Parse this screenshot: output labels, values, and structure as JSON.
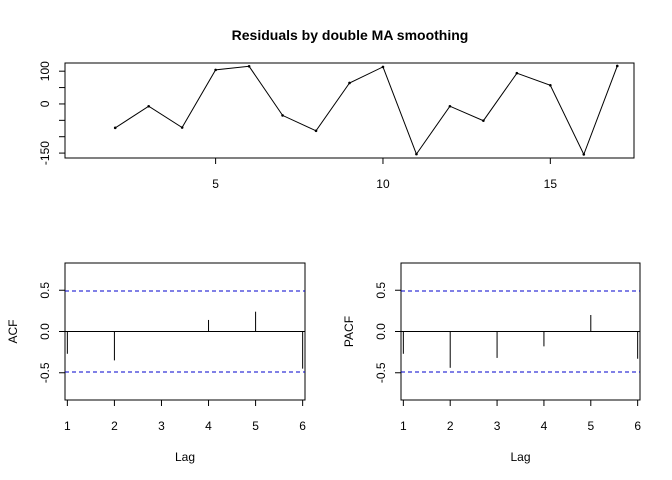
{
  "chart_data": [
    {
      "type": "line",
      "title": "Residuals by double MA smoothing",
      "xlabel": "",
      "ylabel": "",
      "xlim": [
        0.5,
        17.5
      ],
      "ylim": [
        -165,
        125
      ],
      "x_ticks": [
        5,
        10,
        15
      ],
      "y_ticks": [
        -150,
        0,
        100
      ],
      "y_minor_ticks": [
        -100,
        -50,
        50
      ],
      "x": [
        2,
        3,
        4,
        5,
        6,
        7,
        8,
        9,
        10,
        11,
        12,
        13,
        14,
        15,
        16,
        17
      ],
      "values": [
        -73,
        -7,
        -72,
        104,
        115,
        -35,
        -82,
        64,
        113,
        -153,
        -7,
        -51,
        94,
        57,
        -154,
        116
      ],
      "grid": false
    },
    {
      "type": "bar",
      "title": "",
      "xlabel": "Lag",
      "ylabel": "ACF",
      "xlim": [
        0.95,
        6.05
      ],
      "ylim": [
        -0.83,
        0.83
      ],
      "x_ticks": [
        1,
        2,
        3,
        4,
        5,
        6
      ],
      "y_ticks": [
        -0.5,
        0.0,
        0.5
      ],
      "y_tick_labels": [
        "-0.5",
        "0.0",
        "0.5"
      ],
      "x": [
        1,
        2,
        3,
        4,
        5,
        6
      ],
      "values": [
        -0.27,
        -0.35,
        0.0,
        0.14,
        0.24,
        -0.45
      ],
      "confidence_bound": 0.49,
      "bound_color": "#0000cc",
      "grid": false
    },
    {
      "type": "bar",
      "title": "",
      "xlabel": "Lag",
      "ylabel": "PACF",
      "xlim": [
        0.95,
        6.05
      ],
      "ylim": [
        -0.83,
        0.83
      ],
      "x_ticks": [
        1,
        2,
        3,
        4,
        5,
        6
      ],
      "y_ticks": [
        -0.5,
        0.0,
        0.5
      ],
      "y_tick_labels": [
        "-0.5",
        "0.0",
        "0.5"
      ],
      "x": [
        1,
        2,
        3,
        4,
        5,
        6
      ],
      "values": [
        -0.27,
        -0.44,
        -0.32,
        -0.18,
        0.2,
        -0.33
      ],
      "confidence_bound": 0.49,
      "bound_color": "#0000cc",
      "grid": false
    }
  ]
}
